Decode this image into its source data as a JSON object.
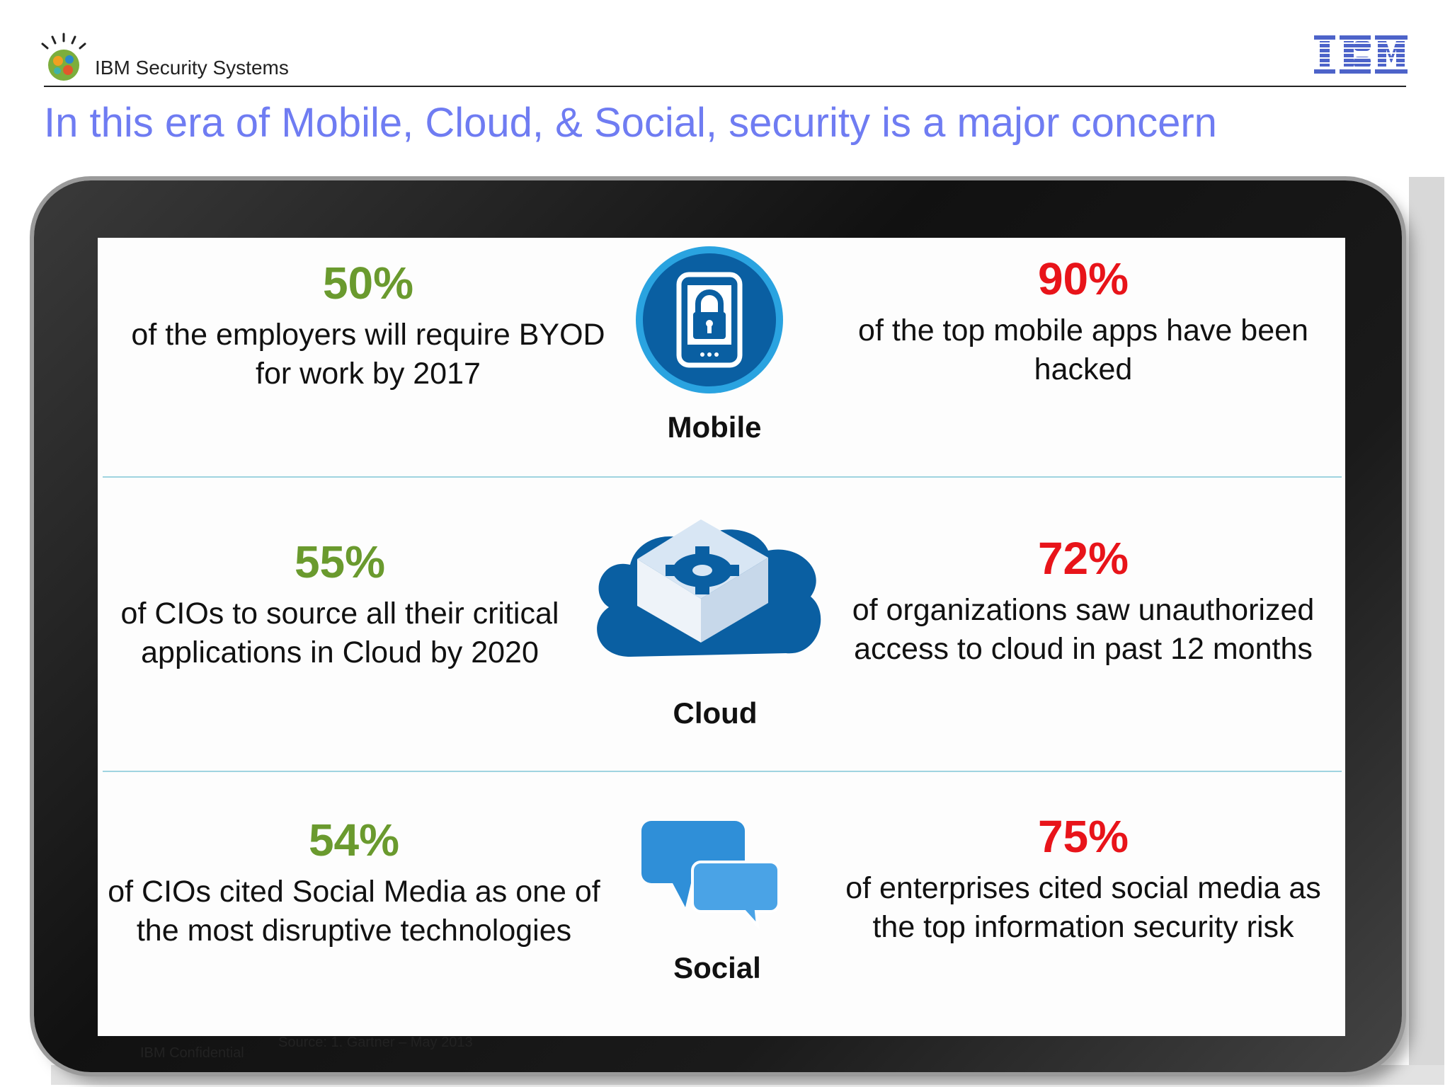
{
  "header": {
    "brand": "IBM Security Systems",
    "title": "In this era of Mobile, Cloud, & Social, security is a major concern"
  },
  "rows": [
    {
      "category": "Mobile",
      "left": {
        "pct": "50%",
        "text": "of the employers will require BYOD for work by 2017"
      },
      "right": {
        "pct": "90%",
        "text": "of the top mobile apps have been hacked"
      }
    },
    {
      "category": "Cloud",
      "left": {
        "pct": "55%",
        "text": "of CIOs to source all their critical applications in Cloud by 2020"
      },
      "right": {
        "pct": "72%",
        "text": "of organizations saw unauthorized access to cloud in past 12 months"
      }
    },
    {
      "category": "Social",
      "left": {
        "pct": "54%",
        "text": "of CIOs cited Social Media as one of the most disruptive technologies"
      },
      "right": {
        "pct": "75%",
        "text": "of enterprises cited social media as the top information security risk"
      }
    }
  ],
  "footer": {
    "confidential": "IBM Confidential",
    "source": "Source: 1. Gartner – May 2013"
  },
  "colors": {
    "title": "#6f7cf2",
    "left_pct": "#6a9a2e",
    "right_pct": "#e8141a",
    "divider": "#9fd4e0"
  },
  "icons": {
    "logo": "ibm-smarter-planet-logo",
    "mobile": "padlock-tablet-icon",
    "cloud": "cloud-gear-icon",
    "social": "speech-bubbles-icon"
  }
}
